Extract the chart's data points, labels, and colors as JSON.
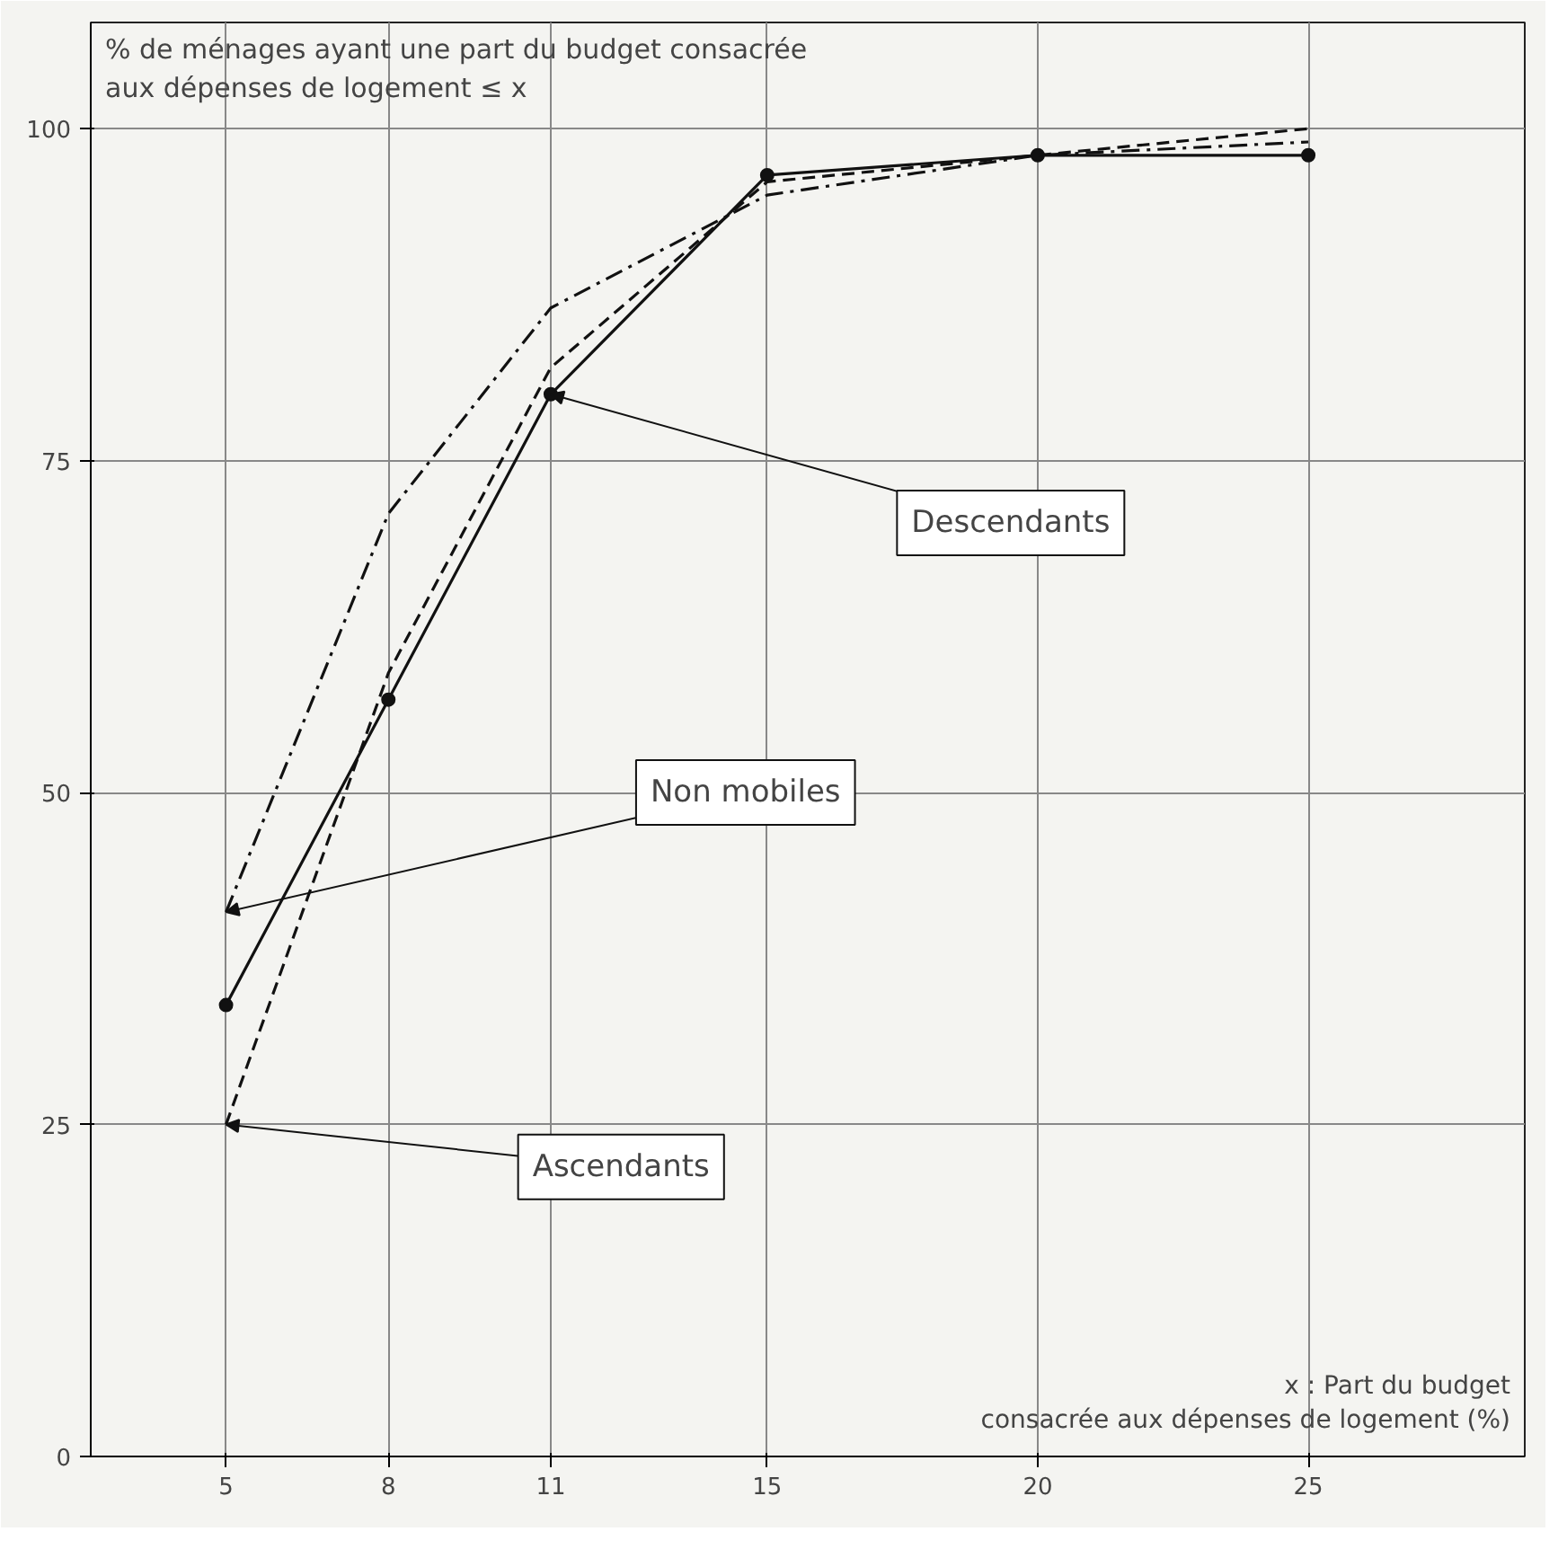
{
  "chart_data": {
    "type": "line",
    "ylabel": "% de ménages ayant une part du budget consacrée\naux dépenses de logement ≤ x",
    "xlabel": "x : Part du budget\nconsacrée aux dépenses de logement (%)",
    "x": [
      5,
      8,
      11,
      15,
      20,
      25
    ],
    "series": [
      {
        "name": "Descendants",
        "color": "#111111",
        "line_style": "solid",
        "marker": "circle",
        "values": [
          34,
          57,
          80,
          96.5,
          98,
          98
        ]
      },
      {
        "name": "Non mobiles",
        "color": "#111111",
        "line_style": "dashdot",
        "marker": "none",
        "values": [
          41,
          71,
          86.5,
          95,
          98,
          99
        ]
      },
      {
        "name": "Ascendants",
        "color": "#111111",
        "line_style": "dashed",
        "marker": "none",
        "values": [
          25,
          59,
          82,
          96,
          98,
          100
        ]
      }
    ],
    "xlim": [
      2.5,
      29
    ],
    "ylim": [
      0,
      108
    ],
    "xticks": [
      5,
      8,
      11,
      15,
      20,
      25
    ],
    "yticks": [
      0,
      25,
      50,
      75,
      100
    ],
    "grid": true,
    "legend": false
  }
}
